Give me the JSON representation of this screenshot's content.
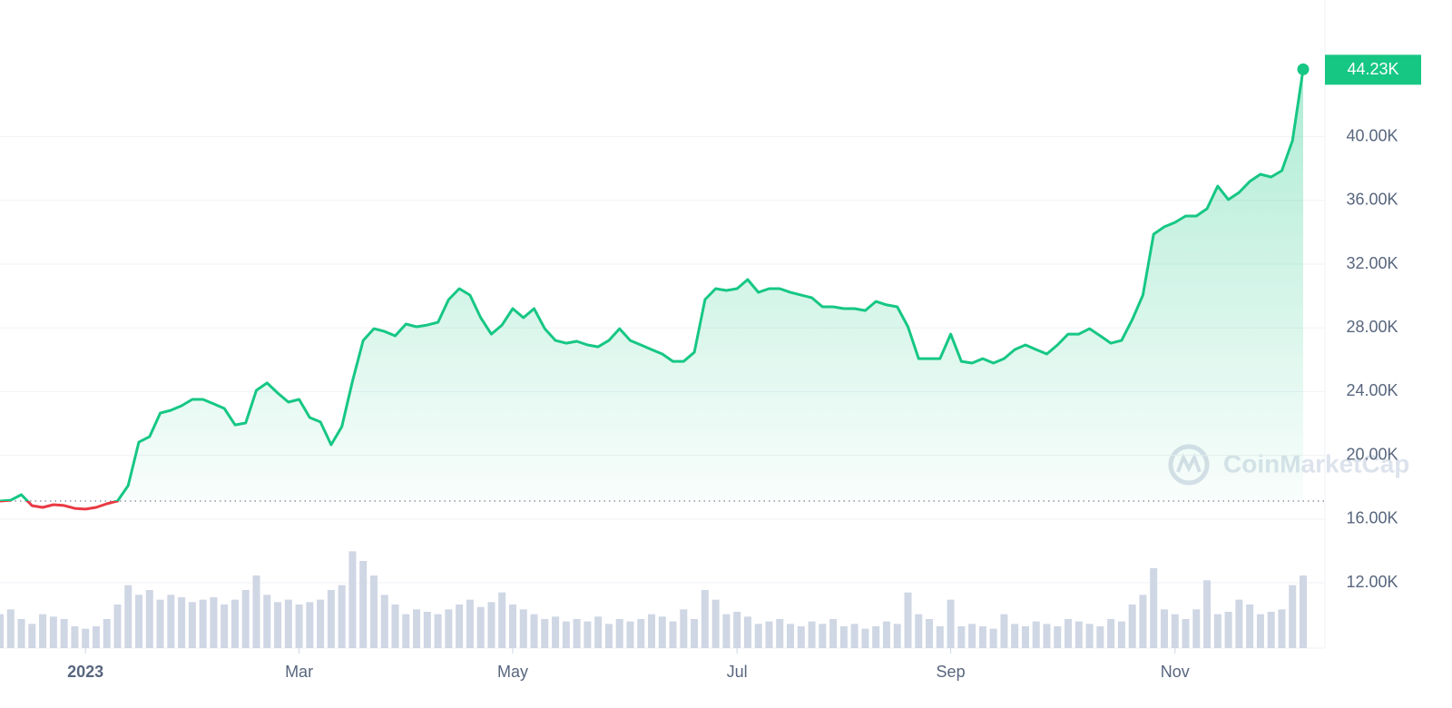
{
  "chart_data": {
    "type": "line",
    "categories": [
      null,
      null,
      null,
      null,
      null,
      null,
      null,
      null,
      "2023",
      null,
      null,
      null,
      null,
      null,
      null,
      null,
      null,
      null,
      null,
      null,
      null,
      null,
      null,
      null,
      null,
      null,
      null,
      null,
      "Mar",
      null,
      null,
      null,
      null,
      null,
      null,
      null,
      null,
      null,
      null,
      null,
      null,
      null,
      null,
      null,
      null,
      null,
      null,
      null,
      "May",
      null,
      null,
      null,
      null,
      null,
      null,
      null,
      null,
      null,
      null,
      null,
      null,
      null,
      null,
      null,
      null,
      null,
      null,
      null,
      null,
      "Jul",
      null,
      null,
      null,
      null,
      null,
      null,
      null,
      null,
      null,
      null,
      null,
      null,
      null,
      null,
      null,
      null,
      null,
      null,
      null,
      "Sep",
      null,
      null,
      null,
      null,
      null,
      null,
      null,
      null,
      null,
      null,
      null,
      null,
      null,
      null,
      null,
      null,
      null,
      null,
      null,
      null,
      "Nov",
      null,
      null,
      null,
      null,
      null,
      null,
      null,
      null,
      null,
      null,
      null,
      null
    ],
    "series": [
      {
        "color": "#16c784",
        "down_color": "#ea3943",
        "values": [
          17130,
          17180,
          17530,
          16840,
          16730,
          16900,
          16850,
          16670,
          16620,
          16730,
          16960,
          17130,
          18100,
          20830,
          21170,
          22650,
          22830,
          23110,
          23510,
          23510,
          23230,
          22940,
          21910,
          22030,
          24080,
          24540,
          23910,
          23340,
          23510,
          22370,
          22090,
          20660,
          21800,
          24650,
          27210,
          27950,
          27780,
          27500,
          28240,
          28070,
          28180,
          28350,
          29780,
          30460,
          30060,
          28640,
          27610,
          28180,
          29210,
          28640,
          29210,
          27950,
          27210,
          27040,
          27160,
          26930,
          26810,
          27210,
          27950,
          27210,
          26930,
          26640,
          26360,
          25900,
          25900,
          26470,
          29780,
          30460,
          30350,
          30460,
          31030,
          30230,
          30460,
          30460,
          30230,
          30060,
          29890,
          29320,
          29320,
          29210,
          29210,
          29090,
          29660,
          29440,
          29320,
          28070,
          26070,
          26070,
          26070,
          27610,
          25900,
          25790,
          26070,
          25790,
          26070,
          26640,
          26930,
          26640,
          26360,
          26930,
          27610,
          27610,
          27950,
          27500,
          27040,
          27210,
          28520,
          30060,
          33880,
          34340,
          34620,
          35020,
          35020,
          35480,
          36900,
          36050,
          36500,
          37190,
          37640,
          37470,
          37870,
          39750,
          44230
        ],
        "value_labels": [
          null,
          null,
          null,
          null,
          null,
          null,
          null,
          null,
          null,
          null,
          null,
          null,
          null,
          null,
          null,
          null,
          null,
          null,
          null,
          null,
          null,
          null,
          null,
          null,
          null,
          null,
          null,
          null,
          null,
          null,
          null,
          null,
          null,
          null,
          null,
          null,
          null,
          null,
          null,
          null,
          null,
          null,
          null,
          null,
          null,
          null,
          null,
          null,
          null,
          null,
          null,
          null,
          null,
          null,
          null,
          null,
          null,
          null,
          null,
          null,
          null,
          null,
          null,
          null,
          null,
          null,
          null,
          null,
          null,
          null,
          null,
          null,
          null,
          null,
          null,
          null,
          null,
          null,
          null,
          null,
          null,
          null,
          null,
          null,
          null,
          null,
          null,
          null,
          null,
          null,
          null,
          null,
          null,
          null,
          null,
          null,
          null,
          null,
          null,
          null,
          null,
          null,
          null,
          null,
          null,
          null,
          null,
          null,
          null,
          null,
          null,
          null,
          null,
          null,
          null,
          null,
          null,
          null,
          null,
          null,
          null,
          null,
          "44.23K"
        ]
      }
    ],
    "baseline": 17130,
    "volume": {
      "color": "#cfd6e4",
      "ylim": [
        0,
        60
      ],
      "values": [
        14,
        16,
        12,
        10,
        14,
        13,
        12,
        9,
        8,
        9,
        12,
        18,
        26,
        22,
        24,
        20,
        22,
        21,
        19,
        20,
        21,
        18,
        20,
        24,
        30,
        22,
        19,
        20,
        18,
        19,
        20,
        24,
        26,
        40,
        36,
        30,
        22,
        18,
        14,
        16,
        15,
        14,
        16,
        18,
        20,
        17,
        19,
        23,
        18,
        16,
        14,
        12,
        13,
        11,
        12,
        11,
        13,
        10,
        12,
        11,
        12,
        14,
        13,
        11,
        16,
        12,
        24,
        20,
        14,
        15,
        13,
        10,
        11,
        12,
        10,
        9,
        11,
        10,
        12,
        9,
        10,
        8,
        9,
        11,
        10,
        23,
        14,
        12,
        9,
        20,
        9,
        10,
        9,
        8,
        14,
        10,
        9,
        11,
        10,
        9,
        12,
        11,
        10,
        9,
        12,
        11,
        18,
        22,
        33,
        16,
        14,
        12,
        16,
        28,
        14,
        15,
        20,
        18,
        14,
        15,
        16,
        26,
        30
      ]
    },
    "ylim": [
      7900,
      48580
    ],
    "yticks": [
      {
        "value": 12000,
        "label": "12.00K"
      },
      {
        "value": 16000,
        "label": "16.00K"
      },
      {
        "value": 20000,
        "label": "20.00K"
      },
      {
        "value": 24000,
        "label": "24.00K"
      },
      {
        "value": 28000,
        "label": "28.00K"
      },
      {
        "value": 32000,
        "label": "32.00K"
      },
      {
        "value": 36000,
        "label": "36.00K"
      },
      {
        "value": 40000,
        "label": "40.00K"
      }
    ],
    "grid": true,
    "watermark": "CoinMarketCap"
  }
}
